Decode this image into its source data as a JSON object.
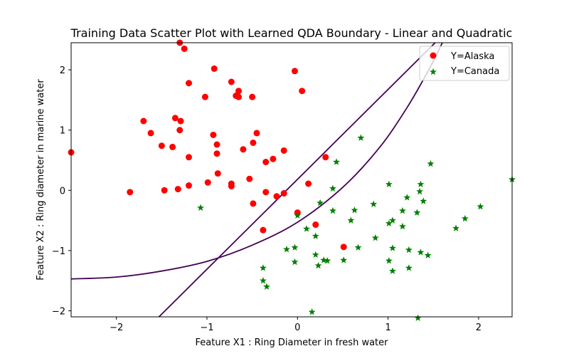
{
  "chart_data": {
    "type": "scatter",
    "title": "Training Data Scatter Plot with Learned QDA Boundary - Linear and Quadratic",
    "xlabel": "Feature X1 : Ring Diameter in fresh water",
    "ylabel": "Feature X2 : Ring diameter in marine water",
    "xlim": [
      -2.5,
      2.37
    ],
    "ylim": [
      -2.1,
      2.45
    ],
    "xticks": [
      -2,
      -1,
      0,
      1,
      2
    ],
    "yticks": [
      -2,
      -1,
      0,
      1,
      2
    ],
    "grid": false,
    "legend_position": "upper-right",
    "series": [
      {
        "name": "Y=Alaska",
        "marker": "circle",
        "color": "#ff0000",
        "points": [
          [
            -1.3,
            2.45
          ],
          [
            -1.25,
            2.35
          ],
          [
            -0.92,
            2.02
          ],
          [
            -0.03,
            1.98
          ],
          [
            0.05,
            1.65
          ],
          [
            -1.2,
            1.78
          ],
          [
            -0.73,
            1.8
          ],
          [
            -0.65,
            1.65
          ],
          [
            -0.68,
            1.57
          ],
          [
            -0.65,
            1.55
          ],
          [
            -0.5,
            1.55
          ],
          [
            -1.02,
            1.55
          ],
          [
            -1.35,
            1.2
          ],
          [
            -1.29,
            1.15
          ],
          [
            -1.7,
            1.15
          ],
          [
            -1.3,
            1.0
          ],
          [
            -1.62,
            0.95
          ],
          [
            -0.93,
            0.92
          ],
          [
            -0.45,
            0.95
          ],
          [
            -0.89,
            0.76
          ],
          [
            -0.49,
            0.79
          ],
          [
            -1.5,
            0.74
          ],
          [
            -1.38,
            0.72
          ],
          [
            -0.6,
            0.68
          ],
          [
            -0.15,
            0.66
          ],
          [
            -2.5,
            0.63
          ],
          [
            -0.89,
            0.61
          ],
          [
            -1.2,
            0.55
          ],
          [
            0.31,
            0.55
          ],
          [
            -0.27,
            0.52
          ],
          [
            -0.35,
            0.47
          ],
          [
            -0.88,
            0.28
          ],
          [
            -0.53,
            0.19
          ],
          [
            -0.99,
            0.13
          ],
          [
            -0.73,
            0.11
          ],
          [
            0.12,
            0.11
          ],
          [
            -1.2,
            0.08
          ],
          [
            -0.73,
            0.07
          ],
          [
            -1.32,
            0.02
          ],
          [
            -1.47,
            0.0
          ],
          [
            -1.85,
            -0.03
          ],
          [
            -0.35,
            -0.03
          ],
          [
            -0.15,
            -0.05
          ],
          [
            -0.23,
            -0.1
          ],
          [
            -0.49,
            -0.22
          ],
          [
            0.0,
            -0.37
          ],
          [
            0.2,
            -0.57
          ],
          [
            -0.38,
            -0.66
          ],
          [
            0.51,
            -0.94
          ]
        ]
      },
      {
        "name": "Y=Canada",
        "marker": "star",
        "color": "#008000",
        "points": [
          [
            0.7,
            0.87
          ],
          [
            0.43,
            0.47
          ],
          [
            1.47,
            0.44
          ],
          [
            2.37,
            0.18
          ],
          [
            1.01,
            0.1
          ],
          [
            1.36,
            0.1
          ],
          [
            0.39,
            0.03
          ],
          [
            1.35,
            -0.02
          ],
          [
            1.21,
            -0.12
          ],
          [
            1.39,
            -0.18
          ],
          [
            0.25,
            -0.21
          ],
          [
            0.84,
            -0.23
          ],
          [
            -1.07,
            -0.29
          ],
          [
            2.02,
            -0.27
          ],
          [
            0.63,
            -0.33
          ],
          [
            0.39,
            -0.34
          ],
          [
            1.16,
            -0.34
          ],
          [
            1.32,
            -0.37
          ],
          [
            0.0,
            -0.42
          ],
          [
            1.85,
            -0.47
          ],
          [
            0.59,
            -0.5
          ],
          [
            1.05,
            -0.5
          ],
          [
            1.01,
            -0.55
          ],
          [
            1.16,
            -0.6
          ],
          [
            1.75,
            -0.63
          ],
          [
            0.1,
            -0.64
          ],
          [
            0.2,
            -0.76
          ],
          [
            0.86,
            -0.79
          ],
          [
            -0.03,
            -0.95
          ],
          [
            0.67,
            -0.95
          ],
          [
            -0.12,
            -0.98
          ],
          [
            1.05,
            -0.96
          ],
          [
            1.23,
            -0.99
          ],
          [
            1.36,
            -1.03
          ],
          [
            1.44,
            -1.08
          ],
          [
            0.2,
            -1.07
          ],
          [
            0.29,
            -1.16
          ],
          [
            0.33,
            -1.17
          ],
          [
            1.01,
            -1.17
          ],
          [
            0.51,
            -1.16
          ],
          [
            -0.03,
            -1.19
          ],
          [
            0.23,
            -1.25
          ],
          [
            -0.38,
            -1.29
          ],
          [
            1.23,
            -1.29
          ],
          [
            1.05,
            -1.34
          ],
          [
            -0.38,
            -1.5
          ],
          [
            -0.34,
            -1.6
          ],
          [
            0.16,
            -2.02
          ],
          [
            1.33,
            -2.12
          ]
        ]
      }
    ],
    "boundaries": [
      {
        "name": "linear",
        "color": "#440154",
        "x": [
          -1.53,
          1.52
        ],
        "y": [
          -2.1,
          2.45
        ]
      },
      {
        "name": "quadratic",
        "color": "#440154",
        "x": [
          -2.5,
          -2.0,
          -1.5,
          -1.0,
          -0.5,
          0.0,
          0.5,
          0.9,
          1.2,
          1.45,
          1.6
        ],
        "y": [
          -1.47,
          -1.44,
          -1.34,
          -1.18,
          -0.91,
          -0.53,
          0.05,
          0.7,
          1.35,
          2.0,
          2.45
        ]
      }
    ]
  }
}
